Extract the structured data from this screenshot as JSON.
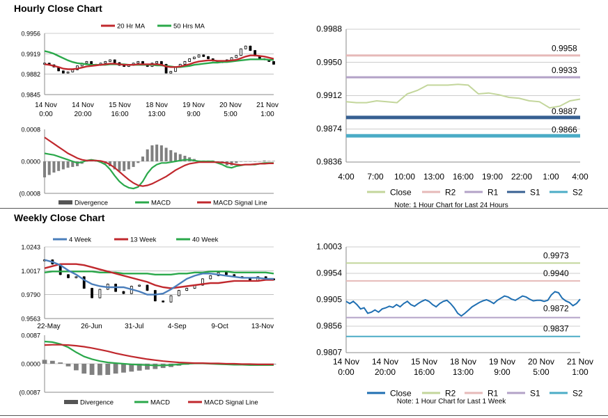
{
  "sections": {
    "hourly_title": "Hourly Close Chart",
    "weekly_title": "Weekly Close Chart"
  },
  "colors": {
    "red": "#c0282d",
    "green": "#2aa84a",
    "blue": "#4a7ebb",
    "black": "#000000",
    "close_light": "#c3d69b",
    "r2_pink": "#e6b9b8",
    "r1_purple": "#b3a2c7",
    "s1_darkblue": "#376092",
    "s2_cyan": "#4bacc6",
    "close_blue": "#1f6fb2",
    "grid": "#9a9a9a",
    "hist": "#808080"
  },
  "chart_data": [
    {
      "id": "hourly_price",
      "type": "line",
      "title": "",
      "legend": [
        "20 Hr MA",
        "50 Hrs MA"
      ],
      "y_ticks": [
        "0.9956",
        "0.9919",
        "0.9882",
        "0.9845"
      ],
      "ylim": [
        0.9845,
        0.9956
      ],
      "x_labels": [
        [
          "14 Nov",
          "0:00"
        ],
        [
          "14 Nov",
          "20:00"
        ],
        [
          "15 Nov",
          "16:00"
        ],
        [
          "18 Nov",
          "13:00"
        ],
        [
          "19 Nov",
          "9:00"
        ],
        [
          "20 Nov",
          "5:00"
        ],
        [
          "21 Nov",
          "1:00"
        ]
      ],
      "series": [
        {
          "name": "Close (candles)",
          "values": [
            0.9902,
            0.9899,
            0.9895,
            0.9888,
            0.9884,
            0.9886,
            0.989,
            0.9897,
            0.9902,
            0.9905,
            0.99,
            0.9898,
            0.9902,
            0.9905,
            0.9908,
            0.9903,
            0.9898,
            0.9896,
            0.9898,
            0.9902,
            0.9905,
            0.99,
            0.9896,
            0.9902,
            0.9905,
            0.99,
            0.9884,
            0.9887,
            0.9895,
            0.99,
            0.9905,
            0.991,
            0.9913,
            0.9917,
            0.9914,
            0.991,
            0.9906,
            0.9903,
            0.9905,
            0.9908,
            0.9912,
            0.9916,
            0.9928,
            0.9933,
            0.9925,
            0.9915,
            0.991,
            0.9908,
            0.9905,
            0.99
          ]
        },
        {
          "name": "20 Hr MA",
          "values": [
            0.99,
            0.9899,
            0.9897,
            0.9895,
            0.9892,
            0.9891,
            0.9891,
            0.9892,
            0.9894,
            0.9896,
            0.9897,
            0.9898,
            0.9899,
            0.99,
            0.9901,
            0.9901,
            0.99,
            0.9899,
            0.9899,
            0.9899,
            0.99,
            0.99,
            0.99,
            0.99,
            0.99,
            0.9899,
            0.9896,
            0.9895,
            0.9895,
            0.9896,
            0.9898,
            0.99,
            0.9903,
            0.9905,
            0.9906,
            0.9907,
            0.9907,
            0.9906,
            0.9906,
            0.9906,
            0.9907,
            0.9908,
            0.9911,
            0.9914,
            0.9916,
            0.9916,
            0.9915,
            0.9914,
            0.9912,
            0.991
          ]
        },
        {
          "name": "50 Hrs MA",
          "values": [
            0.9924,
            0.9922,
            0.9919,
            0.9915,
            0.9911,
            0.9907,
            0.9904,
            0.9902,
            0.9901,
            0.99,
            0.9899,
            0.9899,
            0.9899,
            0.9899,
            0.99,
            0.99,
            0.99,
            0.99,
            0.9899,
            0.9899,
            0.9899,
            0.9899,
            0.9899,
            0.9899,
            0.9898,
            0.9898,
            0.9897,
            0.9896,
            0.9895,
            0.9895,
            0.9896,
            0.9897,
            0.9899,
            0.99,
            0.9901,
            0.9902,
            0.9903,
            0.9903,
            0.9904,
            0.9904,
            0.9905,
            0.9906,
            0.9907,
            0.9908,
            0.9909,
            0.9909,
            0.9909,
            0.9909,
            0.9908,
            0.9908
          ]
        }
      ]
    },
    {
      "id": "hourly_macd",
      "type": "line",
      "legend": [
        "Divergence",
        "MACD",
        "MACD Signal Line"
      ],
      "y_ticks": [
        "0.0008",
        "0.0000",
        "(0.0008"
      ],
      "ylim": [
        -0.0008,
        0.0008
      ],
      "series": [
        {
          "name": "MACD",
          "values": [
            0.0002,
            0.00018,
            0.00016,
            0.00012,
            8e-05,
            4e-05,
            0.0,
            -4e-05,
            -2e-05,
            2e-05,
            4e-05,
            2e-05,
            -2e-05,
            -8e-05,
            -0.0002,
            -0.00036,
            -0.0005,
            -0.0006,
            -0.00066,
            -0.00068,
            -0.00064,
            -0.0005,
            -0.0003,
            -0.00016,
            -8e-05,
            -4e-05,
            -4e-05,
            -2e-05,
            0.0,
            2e-05,
            4e-05,
            4e-05,
            2e-05,
            0.0,
            0.0,
            0.0,
            0.0,
            -4e-05,
            -8e-05,
            -0.00014,
            -0.00016,
            -0.00012,
            -0.0001,
            -8e-05,
            -8e-05,
            -8e-05,
            -6e-05,
            -4e-05,
            -4e-05,
            -4e-05
          ]
        },
        {
          "name": "MACD Signal Line",
          "values": [
            0.0006,
            0.00052,
            0.00044,
            0.00036,
            0.00028,
            0.0002,
            0.00014,
            8e-05,
            4e-05,
            2e-05,
            2e-05,
            2e-05,
            1e-05,
            -2e-05,
            -8e-05,
            -0.00016,
            -0.00026,
            -0.00036,
            -0.00046,
            -0.00054,
            -0.0006,
            -0.00062,
            -0.0006,
            -0.00056,
            -0.0005,
            -0.00044,
            -0.00038,
            -0.0003,
            -0.00022,
            -0.00016,
            -0.0001,
            -6e-05,
            -4e-05,
            -2e-05,
            -2e-05,
            -2e-05,
            -2e-05,
            -2e-05,
            -3e-05,
            -4e-05,
            -6e-05,
            -8e-05,
            -9e-05,
            -8e-05,
            -8e-05,
            -7e-05,
            -6e-05,
            -6e-05,
            -5e-05,
            -5e-05
          ]
        },
        {
          "name": "Divergence",
          "values": [
            -0.0004,
            -0.00034,
            -0.00028,
            -0.00024,
            -0.0002,
            -0.00016,
            -0.00014,
            -0.00012,
            -6e-05,
            0.0,
            2e-05,
            0.0,
            -3e-05,
            -6e-05,
            -0.00012,
            -0.0002,
            -0.00024,
            -0.00024,
            -0.0002,
            -0.00014,
            -4e-05,
            0.00012,
            0.0003,
            0.0004,
            0.00042,
            0.0004,
            0.00034,
            0.00028,
            0.00022,
            0.00018,
            0.00014,
            0.0001,
            6e-05,
            2e-05,
            2e-05,
            2e-05,
            2e-05,
            -2e-05,
            -5e-05,
            -0.0001,
            -0.0001,
            -4e-05,
            -1e-05,
            0.0,
            0.0,
            -1e-05,
            0.0,
            2e-05,
            1e-05,
            1e-05
          ]
        }
      ]
    },
    {
      "id": "hourly_levels",
      "type": "line",
      "y_ticks": [
        "0.9988",
        "0.9950",
        "0.9912",
        "0.9874",
        "0.9836"
      ],
      "ylim": [
        0.9836,
        0.9988
      ],
      "x_labels": [
        "4:00",
        "7:00",
        "10:00",
        "13:00",
        "16:00",
        "19:00",
        "22:00",
        "1:00",
        "4:00"
      ],
      "legend": [
        "Close",
        "R2",
        "R1",
        "S1",
        "S2"
      ],
      "note": "Note: 1 Hour Chart for Last 24 Hours",
      "levels": [
        {
          "name": "R2",
          "value": 0.9958,
          "label": "0.9958"
        },
        {
          "name": "R1",
          "value": 0.9933,
          "label": "0.9933"
        },
        {
          "name": "S1",
          "value": 0.9887,
          "label": "0.9887"
        },
        {
          "name": "S2",
          "value": 0.9866,
          "label": "0.9866"
        }
      ],
      "close": [
        0.9905,
        0.9904,
        0.9904,
        0.9906,
        0.9905,
        0.9904,
        0.9914,
        0.9918,
        0.9924,
        0.9924,
        0.9924,
        0.9925,
        0.9924,
        0.9914,
        0.9915,
        0.9913,
        0.991,
        0.9909,
        0.9906,
        0.9905,
        0.9898,
        0.99,
        0.9906,
        0.9908
      ]
    },
    {
      "id": "weekly_price",
      "type": "line",
      "legend": [
        "4 Week",
        "13 Week",
        "40 Week"
      ],
      "y_ticks": [
        "1.0243",
        "1.0017",
        "0.9790",
        "0.9563"
      ],
      "ylim": [
        0.9563,
        1.0243
      ],
      "x_labels": [
        "22-May",
        "26-Jun",
        "31-Jul",
        "4-Sep",
        "9-Oct",
        "13-Nov"
      ],
      "series": [
        {
          "name": "Close (candles)",
          "values": [
            1.012,
            1.008,
            0.998,
            0.995,
            0.996,
            0.985,
            0.976,
            0.984,
            0.989,
            0.982,
            0.98,
            0.987,
            0.988,
            0.983,
            0.973,
            0.972,
            0.978,
            0.983,
            0.985,
            0.988,
            0.994,
            0.997,
            1.0,
            0.998,
            0.996,
            0.995,
            0.992,
            0.996,
            0.994,
            0.993
          ]
        },
        {
          "name": "4 Week",
          "values": [
            1.012,
            1.01,
            1.007,
            1.002,
            0.998,
            0.993,
            0.989,
            0.987,
            0.986,
            0.986,
            0.986,
            0.984,
            0.982,
            0.979,
            0.979,
            0.98,
            0.984,
            0.989,
            0.994,
            0.997,
            0.999,
            0.999,
            0.998,
            0.997,
            0.996,
            0.995,
            0.995,
            0.995,
            0.994,
            0.994
          ]
        },
        {
          "name": "13 Week",
          "values": [
            1.004,
            1.006,
            1.008,
            1.008,
            1.008,
            1.007,
            1.005,
            1.003,
            1.001,
            0.999,
            0.997,
            0.995,
            0.993,
            0.991,
            0.988,
            0.986,
            0.985,
            0.986,
            0.987,
            0.988,
            0.989,
            0.99,
            0.99,
            0.991,
            0.992,
            0.992,
            0.992,
            0.992,
            0.993,
            0.993
          ]
        },
        {
          "name": "40 Week",
          "values": [
            1.0,
            1.001,
            1.001,
            1.001,
            1.001,
            1.001,
            1.001,
            1.0,
            1.0,
            1.0,
            0.999,
            0.999,
            0.999,
            0.999,
            0.998,
            0.998,
            0.998,
            0.999,
            0.999,
            1.0,
            1.0,
            1.001,
            1.001,
            1.001,
            1.0,
            1.0,
            1.0,
            1.0,
            1.0,
            0.999
          ]
        }
      ]
    },
    {
      "id": "weekly_macd",
      "type": "line",
      "legend": [
        "Divergence",
        "MACD",
        "MACD Signal Line"
      ],
      "y_ticks": [
        "0.0087",
        "0.0000",
        "(0.0087"
      ],
      "ylim": [
        -0.0087,
        0.0087
      ],
      "series": [
        {
          "name": "MACD",
          "values": [
            0.0068,
            0.0066,
            0.006,
            0.005,
            0.0035,
            0.0022,
            0.0014,
            0.0008,
            0.0004,
            0.0002,
            0.0,
            -0.0002,
            -0.0003,
            -0.0004,
            -0.0005,
            -0.0005,
            -0.0004,
            -0.0002,
            0.0,
            0.0001,
            0.0001,
            0.0,
            -0.0001,
            -0.0002,
            -0.0003,
            -0.0003,
            -0.0004,
            -0.0004,
            -0.0004,
            -0.0004
          ]
        },
        {
          "name": "MACD Signal Line",
          "values": [
            0.0057,
            0.0058,
            0.0058,
            0.0057,
            0.0055,
            0.0052,
            0.0048,
            0.0043,
            0.0038,
            0.0032,
            0.0027,
            0.0022,
            0.0018,
            0.0014,
            0.0011,
            0.0008,
            0.0006,
            0.0004,
            0.0003,
            0.0002,
            0.0002,
            0.0001,
            0.0001,
            0.0,
            0.0,
            -0.0001,
            -0.0001,
            -0.0002,
            -0.0002,
            -0.0002
          ]
        },
        {
          "name": "Divergence",
          "values": [
            0.0012,
            0.0009,
            0.0004,
            -0.0008,
            -0.002,
            -0.003,
            -0.0034,
            -0.0035,
            -0.0034,
            -0.003,
            -0.0027,
            -0.0024,
            -0.0021,
            -0.0018,
            -0.0016,
            -0.0013,
            -0.001,
            -0.0006,
            -0.0003,
            -0.0001,
            -0.0001,
            -0.0001,
            -0.0002,
            -0.0002,
            -0.0003,
            -0.0002,
            -0.0003,
            -0.0002,
            -0.0002,
            -0.0002
          ]
        }
      ]
    },
    {
      "id": "weekly_levels",
      "type": "line",
      "y_ticks": [
        "1.0003",
        "0.9954",
        "0.9905",
        "0.9856",
        "0.9807"
      ],
      "ylim": [
        0.9807,
        1.0003
      ],
      "x_labels": [
        [
          "14 Nov",
          "0:00"
        ],
        [
          "14 Nov",
          "20:00"
        ],
        [
          "15 Nov",
          "16:00"
        ],
        [
          "18 Nov",
          "13:00"
        ],
        [
          "19 Nov",
          "9:00"
        ],
        [
          "20 Nov",
          "5:00"
        ],
        [
          "21 Nov",
          "1:00"
        ]
      ],
      "legend": [
        "Close",
        "R2",
        "R1",
        "S1",
        "S2"
      ],
      "note": "Note: 1 Hour Chart for Last 1 Week",
      "levels": [
        {
          "name": "R2",
          "value": 0.9973,
          "label": "0.9973"
        },
        {
          "name": "R1",
          "value": 0.994,
          "label": "0.9940"
        },
        {
          "name": "S1",
          "value": 0.9872,
          "label": "0.9872"
        },
        {
          "name": "S2",
          "value": 0.9837,
          "label": "0.9837"
        }
      ],
      "close": [
        0.9902,
        0.9898,
        0.9902,
        0.9896,
        0.9888,
        0.989,
        0.988,
        0.9882,
        0.9886,
        0.9882,
        0.9888,
        0.989,
        0.9893,
        0.9891,
        0.9896,
        0.9892,
        0.9898,
        0.9902,
        0.9896,
        0.9893,
        0.9898,
        0.9902,
        0.9905,
        0.9902,
        0.9896,
        0.9892,
        0.9898,
        0.9902,
        0.9904,
        0.9898,
        0.989,
        0.988,
        0.9875,
        0.988,
        0.9886,
        0.9892,
        0.9896,
        0.99,
        0.9903,
        0.9905,
        0.9902,
        0.9898,
        0.9904,
        0.9908,
        0.9912,
        0.991,
        0.9906,
        0.9904,
        0.9908,
        0.9912,
        0.991,
        0.9906,
        0.9903,
        0.9904,
        0.9904,
        0.9902,
        0.9904,
        0.9914,
        0.992,
        0.9918,
        0.9908,
        0.9903,
        0.99,
        0.9894,
        0.9898,
        0.9906
      ]
    }
  ]
}
